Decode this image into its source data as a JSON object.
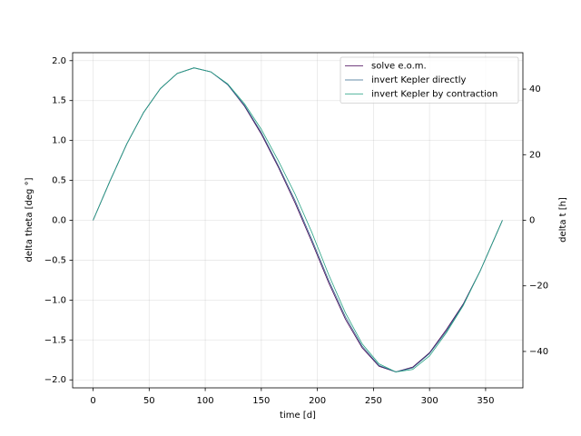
{
  "chart_data": {
    "type": "line",
    "xlabel": "time [d]",
    "ylabel": "delta theta [deg °]",
    "y2label": "delta t [h]",
    "x": [
      0,
      15,
      30,
      45,
      60,
      75,
      90,
      105,
      120,
      135,
      150,
      165,
      180,
      195,
      210,
      225,
      240,
      255,
      270,
      285,
      300,
      315,
      330,
      345,
      360,
      365
    ],
    "series": [
      {
        "name": "solve e.o.m.",
        "color": "#440154",
        "values": [
          0,
          0.49,
          0.955,
          1.35,
          1.65,
          1.84,
          1.91,
          1.86,
          1.7,
          1.43,
          1.08,
          0.67,
          0.22,
          -0.27,
          -0.78,
          -1.24,
          -1.6,
          -1.83,
          -1.9,
          -1.84,
          -1.66,
          -1.37,
          -1.05,
          -0.64,
          -0.16,
          0
        ]
      },
      {
        "name": "invert Kepler directly",
        "color": "#31688e",
        "values": [
          0,
          0.49,
          0.955,
          1.35,
          1.65,
          1.84,
          1.91,
          1.86,
          1.7,
          1.44,
          1.1,
          0.69,
          0.25,
          -0.24,
          -0.75,
          -1.21,
          -1.58,
          -1.82,
          -1.9,
          -1.85,
          -1.67,
          -1.39,
          -1.06,
          -0.64,
          -0.16,
          0
        ]
      },
      {
        "name": "invert Kepler by contraction",
        "color": "#26a283",
        "values": [
          0,
          0.49,
          0.955,
          1.35,
          1.65,
          1.84,
          1.91,
          1.86,
          1.71,
          1.46,
          1.14,
          0.75,
          0.33,
          -0.15,
          -0.68,
          -1.16,
          -1.55,
          -1.8,
          -1.9,
          -1.87,
          -1.7,
          -1.41,
          -1.07,
          -0.64,
          -0.16,
          0
        ]
      }
    ],
    "xlim": [
      -18.25,
      383.25
    ],
    "xticks": [
      0,
      50,
      100,
      150,
      200,
      250,
      300,
      350
    ],
    "ylim": [
      -2.1,
      2.1
    ],
    "yticks": [
      {
        "value": -2,
        "label": "−2.0"
      },
      {
        "value": -1.5,
        "label": "−1.5"
      },
      {
        "value": -1,
        "label": "−1.0"
      },
      {
        "value": -0.5,
        "label": "−0.5"
      },
      {
        "value": 0,
        "label": "0.0"
      },
      0.5,
      {
        "value": 1,
        "label": "1.0"
      },
      1.5,
      {
        "value": 2,
        "label": "2.0"
      }
    ],
    "y2lim": [
      -51.1,
      51.1
    ],
    "y2ticks": [
      {
        "value": -40,
        "label": "−40"
      },
      {
        "value": -20,
        "label": "−20"
      },
      0,
      20,
      40
    ],
    "grid": true,
    "legend": "upper right"
  }
}
